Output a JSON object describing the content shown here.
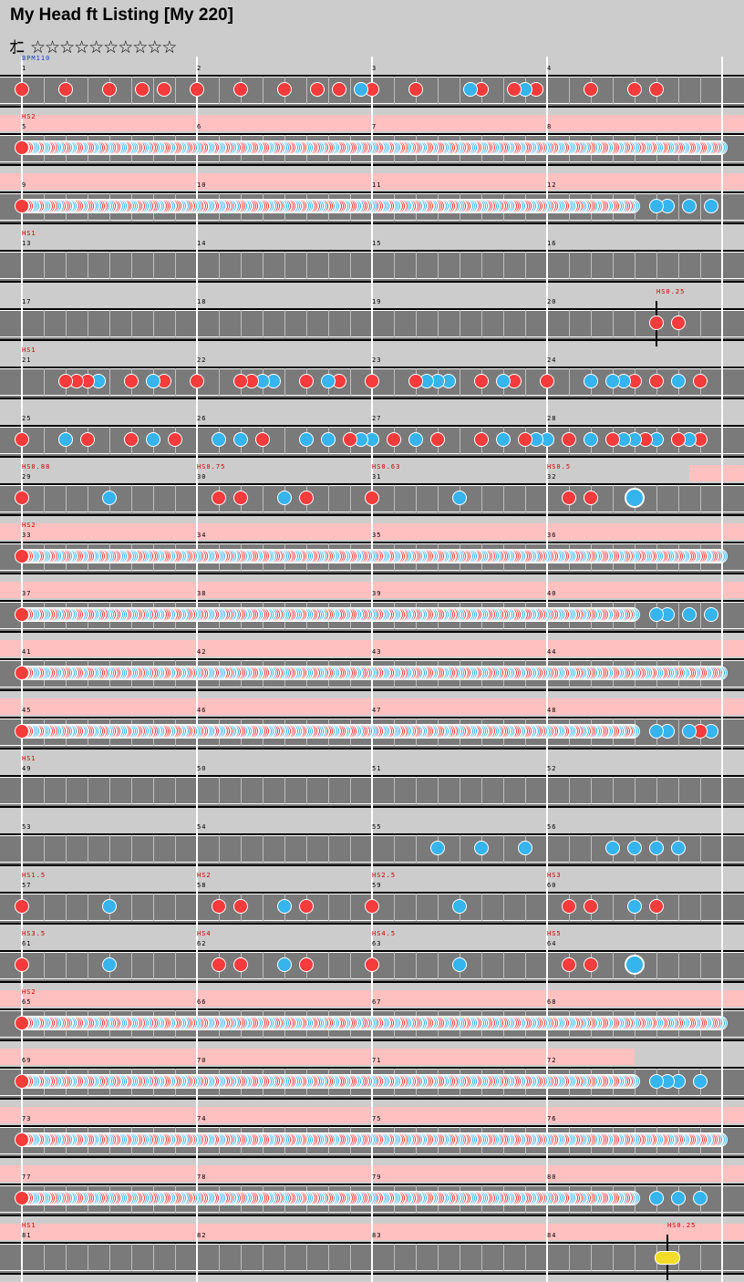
{
  "title": "My Head ft Listing [My 220]",
  "level": {
    "glyph": "ｵﾆ",
    "stars": "☆☆☆☆☆☆☆☆☆☆"
  },
  "colors": {
    "don": "#f53b3b",
    "ka": "#35b4ee",
    "balloon": "#f2dc28",
    "gogo": "#ffc0c0",
    "track": "#7a7a7a",
    "background": "#cccccc"
  },
  "chart_data": {
    "type": "taiko-chart",
    "bpm_label": "BPM110",
    "rows": [
      {
        "measures": [
          "1",
          "2",
          "3",
          "4"
        ],
        "labels": [],
        "gogo": [],
        "notes": "d:0,d:2,d:4,d:5.5,d:6.5,d:8,d:10,d:12,d:13.5,d:14.5,k:15.5,d:16,d:18,k:20.5,d:21,d:22.5,k:23,d:23.5,d:26,d:28,d:29"
      },
      {
        "measures": [
          "5",
          "6",
          "7",
          "8"
        ],
        "labels": [
          {
            "at": 0,
            "text": "HS2"
          }
        ],
        "gogo": [
          [
            0,
            32.5
          ]
        ],
        "notes": "s:0-32:14"
      },
      {
        "measures": [
          "9",
          "10",
          "11",
          "12"
        ],
        "labels": [],
        "gogo": [
          [
            0,
            32.5
          ]
        ],
        "notes": "s:0-28:14,k:29,k:29.5,k:30.5,k:31.5"
      },
      {
        "measures": [
          "13",
          "14",
          "15",
          "16"
        ],
        "labels": [
          {
            "at": 0,
            "text": "HS1"
          }
        ],
        "gogo": [],
        "notes": ""
      },
      {
        "measures": [
          "17",
          "18",
          "19",
          "20"
        ],
        "labels": [
          {
            "at": 29,
            "text": "HS0.25"
          }
        ],
        "gogo": [],
        "markers": [
          29
        ],
        "notes": "d:29,d:30"
      },
      {
        "measures": [
          "21",
          "22",
          "23",
          "24"
        ],
        "labels": [
          {
            "at": 0,
            "text": "HS1"
          }
        ],
        "gogo": [],
        "notes": "d:2,d:2.5,d:3,k:3.5,d:5,k:6,d:6.5,d:8,d:10,d:10.5,k:11,k:11.5,d:13,k:14,d:14.5,d:16,d:18,k:18.5,k:19,k:19.5,d:21,k:22,d:22.5,d:24,k:26,k:27,k:27.5,d:28,d:29,k:30,d:31"
      },
      {
        "measures": [
          "25",
          "26",
          "27",
          "28"
        ],
        "labels": [],
        "gogo": [],
        "notes": "d:0,k:2,d:3,d:5,k:6,d:7,k:9,k:10,d:11,k:13,k:14,d:15,k:15.5,k:16,d:17,k:18,d:19,d:21,k:22,d:23,k:23.5,k:24,d:25,k:26,d:27,k:27.5,k:28,d:28.5,k:29,d:30,k:30.5,d:31"
      },
      {
        "measures": [
          "29",
          "30",
          "31",
          "32"
        ],
        "labels": [
          {
            "at": 0,
            "text": "HS0.88"
          },
          {
            "at": 8,
            "text": "HS0.75"
          },
          {
            "at": 16,
            "text": "HS0.63"
          },
          {
            "at": 24,
            "text": "HS0.5"
          }
        ],
        "gogo": [
          [
            30.5,
            32.5
          ]
        ],
        "notes": "d:0,k:4,d:9,d:10,k:12,d:13,d:16,k:20,d:25,d:26,K:28"
      },
      {
        "measures": [
          "33",
          "34",
          "35",
          "36"
        ],
        "labels": [
          {
            "at": 0,
            "text": "HS2"
          }
        ],
        "gogo": [
          [
            0,
            32.5
          ]
        ],
        "notes": "s:0-32:14"
      },
      {
        "measures": [
          "37",
          "38",
          "39",
          "40"
        ],
        "labels": [],
        "gogo": [
          [
            0,
            32.5
          ]
        ],
        "notes": "s:0-28:14,k:29,k:29.5,k:30.5,k:31.5"
      },
      {
        "measures": [
          "41",
          "42",
          "43",
          "44"
        ],
        "labels": [],
        "gogo": [
          [
            0,
            32.5
          ]
        ],
        "notes": "s:0-32:14"
      },
      {
        "measures": [
          "45",
          "46",
          "47",
          "48"
        ],
        "labels": [],
        "gogo": [
          [
            0,
            32.5
          ]
        ],
        "notes": "s:0-28:14,k:29,k:29.5,k:30.5,d:31,k:31.5"
      },
      {
        "measures": [
          "49",
          "50",
          "51",
          "52"
        ],
        "labels": [
          {
            "at": 0,
            "text": "HS1"
          }
        ],
        "gogo": [],
        "notes": ""
      },
      {
        "measures": [
          "53",
          "54",
          "55",
          "56"
        ],
        "labels": [],
        "gogo": [],
        "notes": "k:19,k:21,k:23,k:27,k:28,k:29,k:30"
      },
      {
        "measures": [
          "57",
          "58",
          "59",
          "60"
        ],
        "labels": [
          {
            "at": 0,
            "text": "HS1.5"
          },
          {
            "at": 8,
            "text": "HS2"
          },
          {
            "at": 16,
            "text": "HS2.5"
          },
          {
            "at": 24,
            "text": "HS3"
          }
        ],
        "gogo": [],
        "notes": "d:0,k:4,d:9,d:10,k:12,d:13,d:16,k:20,d:25,d:26,k:28,d:29"
      },
      {
        "measures": [
          "61",
          "62",
          "63",
          "64"
        ],
        "labels": [
          {
            "at": 0,
            "text": "HS3.5"
          },
          {
            "at": 8,
            "text": "HS4"
          },
          {
            "at": 16,
            "text": "HS4.5"
          },
          {
            "at": 24,
            "text": "HS5"
          }
        ],
        "gogo": [],
        "notes": "d:0,k:4,d:9,d:10,k:12,d:13,d:16,k:20,d:25,d:26,K:28"
      },
      {
        "measures": [
          "65",
          "66",
          "67",
          "68"
        ],
        "labels": [
          {
            "at": 0,
            "text": "HS2"
          }
        ],
        "gogo": [
          [
            0,
            32.5
          ]
        ],
        "notes": "s:0-32:14"
      },
      {
        "measures": [
          "69",
          "70",
          "71",
          "72"
        ],
        "labels": [],
        "gogo": [
          [
            0,
            28
          ]
        ],
        "notes": "s:0-28:14,k:29,k:29.5,k:30,k:31"
      },
      {
        "measures": [
          "73",
          "74",
          "75",
          "76"
        ],
        "labels": [],
        "gogo": [
          [
            0,
            32.5
          ]
        ],
        "notes": "s:0-32:14"
      },
      {
        "measures": [
          "77",
          "78",
          "79",
          "80"
        ],
        "labels": [],
        "gogo": [
          [
            0,
            32.5
          ]
        ],
        "notes": "s:0-28:14,k:29,k:30,k:31"
      },
      {
        "measures": [
          "81",
          "82",
          "83",
          "84"
        ],
        "labels": [
          {
            "at": 0,
            "text": "HS1"
          },
          {
            "at": 29.5,
            "text": "HS0.25"
          }
        ],
        "gogo": [
          [
            0,
            32.5
          ]
        ],
        "markers": [
          29.5
        ],
        "notes": "b:29.5"
      }
    ]
  }
}
